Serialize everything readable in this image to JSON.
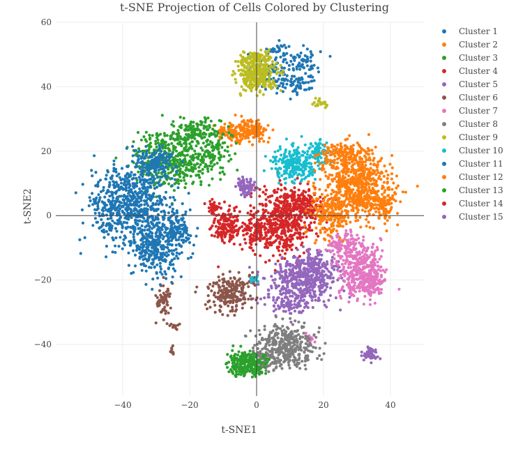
{
  "chart_data": {
    "type": "scatter",
    "title": "t-SNE Projection of Cells Colored by Clustering",
    "xlabel": "t-SNE1",
    "ylabel": "t-SNE2",
    "xlim": [
      -60,
      50
    ],
    "ylim": [
      -56,
      60
    ],
    "xticks": [
      -40,
      -20,
      0,
      20,
      40
    ],
    "yticks": [
      -40,
      -20,
      0,
      20,
      40,
      60
    ],
    "grid": true,
    "zero_lines": true,
    "legend_position": "right",
    "series": [
      {
        "name": "Cluster 1",
        "color": "#1f77b4",
        "blobs": [
          [
            5,
            44,
            5,
            5,
            90
          ],
          [
            14,
            48,
            4,
            3,
            60
          ],
          [
            13,
            41,
            4,
            3,
            50
          ],
          [
            7,
            51,
            3,
            2,
            30
          ]
        ]
      },
      {
        "name": "Cluster 2",
        "color": "#ff7f0e",
        "blobs": [
          [
            -3,
            26,
            5,
            3,
            160
          ],
          [
            -8,
            26,
            3,
            2,
            40
          ],
          [
            0,
            27,
            2,
            2,
            40
          ]
        ]
      },
      {
        "name": "Cluster 3",
        "color": "#2ca02c",
        "blobs": [
          [
            -24,
            18,
            10,
            7,
            450
          ],
          [
            -18,
            26,
            6,
            3,
            120
          ],
          [
            -12,
            20,
            3,
            4,
            60
          ]
        ]
      },
      {
        "name": "Cluster 4",
        "color": "#d62728",
        "blobs": [
          [
            8,
            -2,
            8,
            8,
            520
          ],
          [
            13,
            4,
            6,
            4,
            140
          ],
          [
            0,
            -5,
            4,
            4,
            90
          ]
        ]
      },
      {
        "name": "Cluster 5",
        "color": "#9467bd",
        "blobs": [
          [
            13,
            -21,
            9,
            6,
            420
          ],
          [
            18,
            -16,
            5,
            4,
            120
          ],
          [
            9,
            -28,
            4,
            2,
            60
          ],
          [
            34,
            -43,
            2,
            1.5,
            35
          ],
          [
            -3,
            9,
            2,
            2,
            40
          ]
        ]
      },
      {
        "name": "Cluster 6",
        "color": "#8c564b",
        "blobs": [
          [
            -8,
            -24,
            5,
            5,
            220
          ],
          [
            -28,
            -26,
            2,
            4,
            60
          ],
          [
            -25,
            -34,
            1.5,
            1,
            12
          ],
          [
            -25,
            -42,
            0.5,
            1,
            10
          ]
        ]
      },
      {
        "name": "Cluster 7",
        "color": "#e377c2",
        "blobs": [
          [
            31,
            -17,
            5,
            7,
            380
          ],
          [
            26,
            -9,
            4,
            3,
            100
          ],
          [
            35,
            -22,
            3,
            3,
            60
          ],
          [
            16,
            -38,
            1.5,
            1,
            20
          ]
        ]
      },
      {
        "name": "Cluster 8",
        "color": "#7f7f7f",
        "blobs": [
          [
            9,
            -40,
            7,
            5,
            350
          ],
          [
            3,
            -45,
            4,
            3,
            80
          ]
        ]
      },
      {
        "name": "Cluster 9",
        "color": "#bcbd22",
        "blobs": [
          [
            0,
            44,
            5,
            4,
            320
          ],
          [
            0,
            49,
            4,
            1.5,
            80
          ],
          [
            19,
            35,
            2,
            1,
            20
          ]
        ]
      },
      {
        "name": "Cluster 10",
        "color": "#17becf",
        "blobs": [
          [
            11,
            16,
            5,
            4,
            230
          ],
          [
            19,
            20,
            3,
            3,
            80
          ],
          [
            -1,
            -20,
            1,
            1,
            10
          ]
        ]
      },
      {
        "name": "Cluster 11",
        "color": "#1f77b4",
        "blobs": [
          [
            -38,
            3,
            9,
            10,
            650
          ],
          [
            -30,
            -10,
            6,
            7,
            300
          ],
          [
            -31,
            16,
            5,
            4,
            150
          ],
          [
            -24,
            -4,
            4,
            5,
            130
          ]
        ]
      },
      {
        "name": "Cluster 12",
        "color": "#ff7f0e",
        "blobs": [
          [
            30,
            9,
            8,
            8,
            600
          ],
          [
            22,
            0,
            5,
            5,
            180
          ],
          [
            26,
            19,
            6,
            3,
            150
          ],
          [
            38,
            4,
            3,
            4,
            80
          ]
        ]
      },
      {
        "name": "Cluster 13",
        "color": "#2ca02c",
        "blobs": [
          [
            -4,
            -46,
            4,
            3,
            200
          ],
          [
            1,
            -46,
            2,
            2,
            40
          ]
        ]
      },
      {
        "name": "Cluster 14",
        "color": "#d62728",
        "blobs": [
          [
            -9,
            -3,
            3,
            4,
            160
          ],
          [
            -13,
            3,
            2,
            1.5,
            30
          ]
        ]
      },
      {
        "name": "Cluster 15",
        "color": "#9467bd",
        "blobs": [
          [
            -3,
            9,
            2,
            2,
            50
          ],
          [
            34,
            -43,
            1.5,
            1.5,
            30
          ]
        ]
      }
    ]
  }
}
